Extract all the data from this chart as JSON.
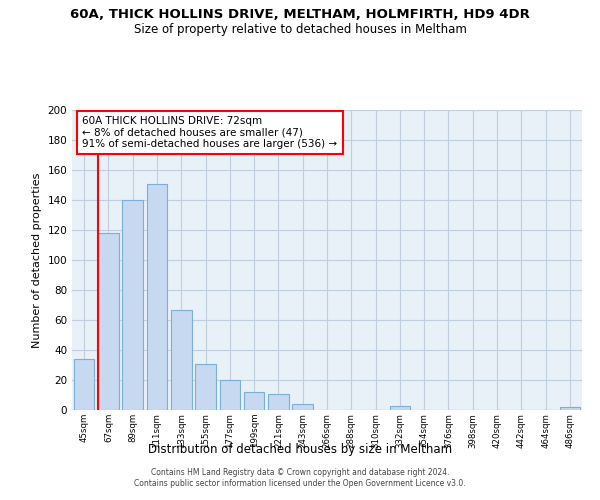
{
  "title": "60A, THICK HOLLINS DRIVE, MELTHAM, HOLMFIRTH, HD9 4DR",
  "subtitle": "Size of property relative to detached houses in Meltham",
  "xlabel": "Distribution of detached houses by size in Meltham",
  "ylabel": "Number of detached properties",
  "bar_labels": [
    "45sqm",
    "67sqm",
    "89sqm",
    "111sqm",
    "133sqm",
    "155sqm",
    "177sqm",
    "199sqm",
    "221sqm",
    "243sqm",
    "266sqm",
    "288sqm",
    "310sqm",
    "332sqm",
    "354sqm",
    "376sqm",
    "398sqm",
    "420sqm",
    "442sqm",
    "464sqm",
    "486sqm"
  ],
  "bar_values": [
    34,
    118,
    140,
    151,
    67,
    31,
    20,
    12,
    11,
    4,
    0,
    0,
    0,
    3,
    0,
    0,
    0,
    0,
    0,
    0,
    2
  ],
  "bar_color": "#c6d9f0",
  "bar_edge_color": "#7bafd4",
  "ylim": [
    0,
    200
  ],
  "yticks": [
    0,
    20,
    40,
    60,
    80,
    100,
    120,
    140,
    160,
    180,
    200
  ],
  "annotation_line1": "60A THICK HOLLINS DRIVE: 72sqm",
  "annotation_line2": "← 8% of detached houses are smaller (47)",
  "annotation_line3": "91% of semi-detached houses are larger (536) →",
  "red_line_x": 0.55,
  "footer_line1": "Contains HM Land Registry data © Crown copyright and database right 2024.",
  "footer_line2": "Contains public sector information licensed under the Open Government Licence v3.0.",
  "background_color": "#ffffff",
  "plot_bg_color": "#e8f0f8",
  "grid_color": "#c0cfe0"
}
